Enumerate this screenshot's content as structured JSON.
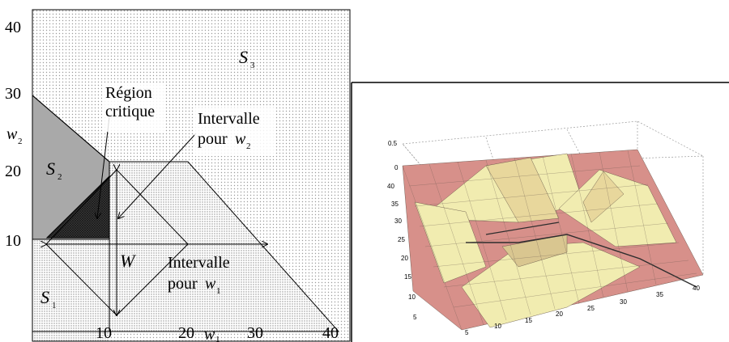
{
  "left_diagram": {
    "y_ticks": [
      "40",
      "30",
      "20",
      "10"
    ],
    "x_ticks": [
      "10",
      "20",
      "30",
      "40"
    ],
    "y_axis_label": {
      "base": "w",
      "sub": "2"
    },
    "x_axis_label": {
      "base": "w",
      "sub": "1"
    },
    "regions": {
      "s1": {
        "base": "S",
        "sub": "1"
      },
      "s2": {
        "base": "S",
        "sub": "2"
      },
      "s3": {
        "base": "S",
        "sub": "3"
      }
    },
    "critical_region_label": [
      "Région",
      "critique"
    ],
    "interval_w2_label": {
      "line1": "Intervalle",
      "line2": "pour",
      "var": "w",
      "sub": "2"
    },
    "interval_w1_label": {
      "line1": "Intervalle",
      "line2": "pour",
      "var": "w",
      "sub": "1"
    },
    "w_label": "W",
    "colors": {
      "dark_gray": "#3a3a3a",
      "mid_gray": "#a9a9a9",
      "dots": "#9a9a9a"
    }
  },
  "right_plot": {
    "z_ticks": [
      "0.5",
      "0"
    ],
    "left_axis_ticks": [
      "40",
      "35",
      "30",
      "25",
      "20",
      "15",
      "10",
      "5"
    ],
    "bottom_axis_ticks": [
      "5",
      "10",
      "15",
      "20",
      "25",
      "30",
      "35",
      "40"
    ],
    "colors": {
      "surface_pink": "#d7908a",
      "surface_yellow": "#f1ecb0",
      "mesh": "#5a4a40"
    }
  }
}
